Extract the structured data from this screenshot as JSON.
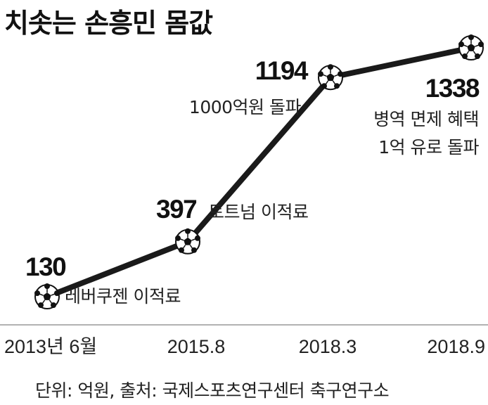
{
  "chart_data": {
    "type": "line",
    "title": "치솟는 손흥민 몸값",
    "categories": [
      "2013년 6월",
      "2015.8",
      "2018.3",
      "2018.9"
    ],
    "values": [
      130,
      397,
      1194,
      1338
    ],
    "annotations": [
      "레버쿠젠 이적료",
      "토트넘 이적료",
      "1000억원 돌파",
      "병역 면제 혜택\n1억 유로 돌파"
    ],
    "unit_source": "단위: 억원, 출처: 국제스포츠연구센터 축구연구소",
    "line_color": "#1a1a1a",
    "marker": "soccer-ball-icon",
    "grid": false
  }
}
